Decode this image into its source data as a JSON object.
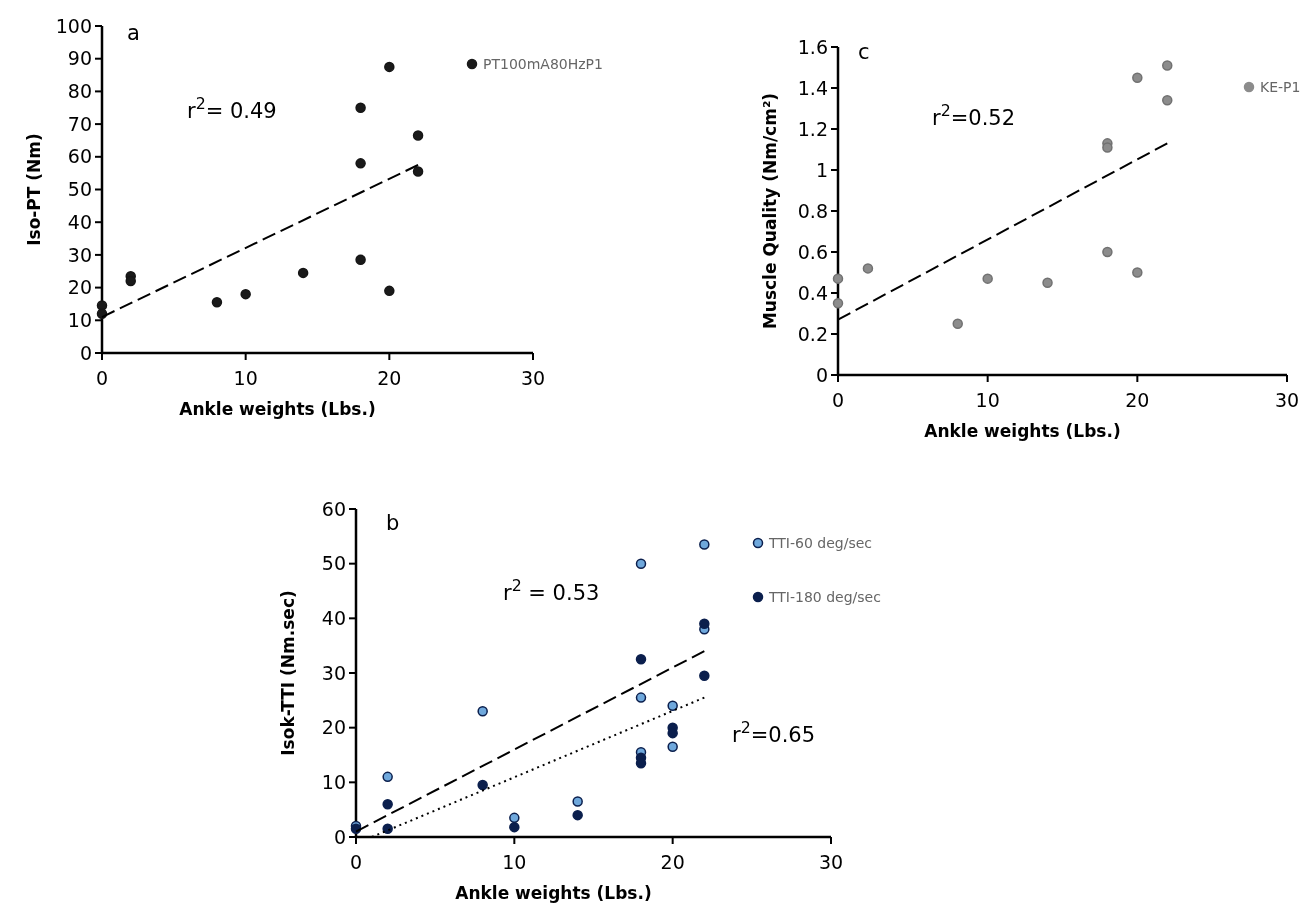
{
  "chart_data": [
    {
      "type": "scatter",
      "title": "a",
      "xlabel": "Ankle weights (Lbs.)",
      "ylabel": "Iso-PT (Nm)",
      "xlim": [
        0,
        30
      ],
      "xticks": [
        0,
        10,
        20,
        30
      ],
      "ylim": [
        0,
        100
      ],
      "yticks": [
        0,
        10,
        20,
        30,
        40,
        50,
        60,
        70,
        80,
        90,
        100
      ],
      "grid": false,
      "legend": "top right",
      "marker": "circle",
      "annotations": [
        "r$^{2}$= 0.49"
      ],
      "series": [
        {
          "name": "PT100mA80HzP1",
          "color": "#1a1a1a",
          "x": [
            0,
            0,
            2,
            2,
            8,
            10,
            14,
            18,
            18,
            18,
            20,
            20,
            22,
            22
          ],
          "values": [
            14.5,
            12,
            23.5,
            22,
            15.5,
            18,
            24.5,
            75,
            58,
            28.5,
            87.5,
            19,
            66.5,
            55.5
          ]
        },
        {
          "type": "line",
          "color": "#000000",
          "marker": "none",
          "line_style": "dashed",
          "x": [
            0,
            22
          ],
          "values": [
            11,
            57.5
          ]
        }
      ]
    },
    {
      "type": "scatter",
      "title": "c",
      "xlabel": "Ankle weights (Lbs.)",
      "ylabel": "Muscle Quality (Nm/cm²)",
      "xlim": [
        0,
        30
      ],
      "xticks": [
        0,
        10,
        20,
        30
      ],
      "ylim": [
        0,
        1.6
      ],
      "yticks": [
        0,
        0.2,
        0.4,
        0.6,
        0.8,
        1,
        1.2,
        1.4,
        1.6
      ],
      "grid": false,
      "legend": "top right",
      "marker": "circle",
      "annotations": [
        "r$^{2}$=0.52"
      ],
      "series": [
        {
          "name": "KE-P1",
          "color": "#8c8c8c",
          "x": [
            0,
            0,
            2,
            8,
            10,
            14,
            18,
            18,
            18,
            20,
            20,
            22,
            22
          ],
          "values": [
            0.47,
            0.35,
            0.52,
            0.25,
            0.47,
            0.45,
            1.13,
            1.11,
            0.6,
            1.45,
            0.5,
            1.51,
            1.34
          ]
        },
        {
          "type": "line",
          "color": "#000000",
          "marker": "none",
          "line_style": "dashed",
          "x": [
            0,
            22
          ],
          "values": [
            0.27,
            1.13
          ]
        }
      ]
    },
    {
      "type": "scatter",
      "title": "b",
      "xlabel": "Ankle weights (Lbs.)",
      "ylabel": "Isok-TTI (Nm.sec)",
      "xlim": [
        0,
        30
      ],
      "xticks": [
        0,
        10,
        20,
        30
      ],
      "ylim": [
        0,
        60
      ],
      "yticks": [
        0,
        10,
        20,
        30,
        40,
        50,
        60
      ],
      "grid": false,
      "legend": "top right",
      "marker": "circle",
      "annotations": [
        "r$^{2}$  = 0.53",
        "r$^{2}$=0.65"
      ],
      "series": [
        {
          "name": "TTI-60 deg/sec",
          "color": "#6fa8dc",
          "x": [
            0,
            2,
            8,
            10,
            14,
            18,
            18,
            18,
            20,
            20,
            22,
            22
          ],
          "values": [
            2,
            11,
            23,
            3.5,
            6.5,
            50,
            25.5,
            15.5,
            24,
            16.5,
            53.5,
            38
          ]
        },
        {
          "name": "TTI-180 deg/sec",
          "color": "#0b1f4d",
          "x": [
            0,
            2,
            2,
            8,
            10,
            14,
            18,
            18,
            18,
            20,
            20,
            22,
            22
          ],
          "values": [
            1.5,
            6,
            1.5,
            9.5,
            1.8,
            4,
            32.5,
            14.5,
            13.5,
            20,
            19,
            39,
            29.5
          ]
        },
        {
          "type": "line",
          "color": "#000000",
          "marker": "none",
          "line_style": "dashed",
          "x": [
            0,
            22
          ],
          "values": [
            1,
            34
          ]
        },
        {
          "type": "line",
          "color": "#000000",
          "marker": "none",
          "line_style": "dotted",
          "x": [
            1,
            22
          ],
          "values": [
            0,
            25.5
          ]
        }
      ]
    }
  ]
}
